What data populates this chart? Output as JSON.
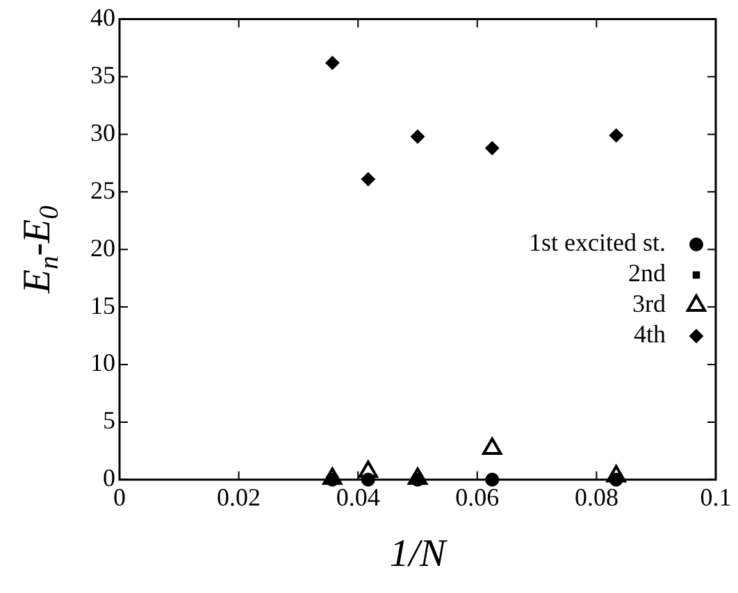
{
  "chart_data": {
    "type": "scatter",
    "xlabel": "1/N",
    "ylabel": "E$_{n}$-E$_{0}$",
    "x": [
      0.0357,
      0.0417,
      0.05,
      0.0625,
      0.0833
    ],
    "series": [
      {
        "name": "1st excited st.",
        "color": "#000000",
        "marker": "circle",
        "values": [
          0,
          0,
          0,
          0,
          0
        ]
      },
      {
        "name": "2nd",
        "color": "#000000",
        "marker": "square",
        "values": [
          null,
          null,
          null,
          null,
          null
        ]
      },
      {
        "name": "3rd",
        "color": "#000000",
        "marker": "triangle",
        "values": [
          0.1,
          0.7,
          0.1,
          2.7,
          0.3
        ]
      },
      {
        "name": "4th",
        "color": "#000000",
        "marker": "diamond",
        "values": [
          36.2,
          26.1,
          29.8,
          28.8,
          29.9
        ]
      }
    ],
    "xlim": [
      0,
      0.1
    ],
    "xticks": [
      0,
      0.02,
      0.04,
      0.06,
      0.08,
      0.1
    ],
    "ylim": [
      0,
      40
    ],
    "yticks": [
      0,
      5,
      10,
      15,
      20,
      25,
      30,
      35,
      40
    ],
    "grid": false,
    "legend": "right"
  }
}
